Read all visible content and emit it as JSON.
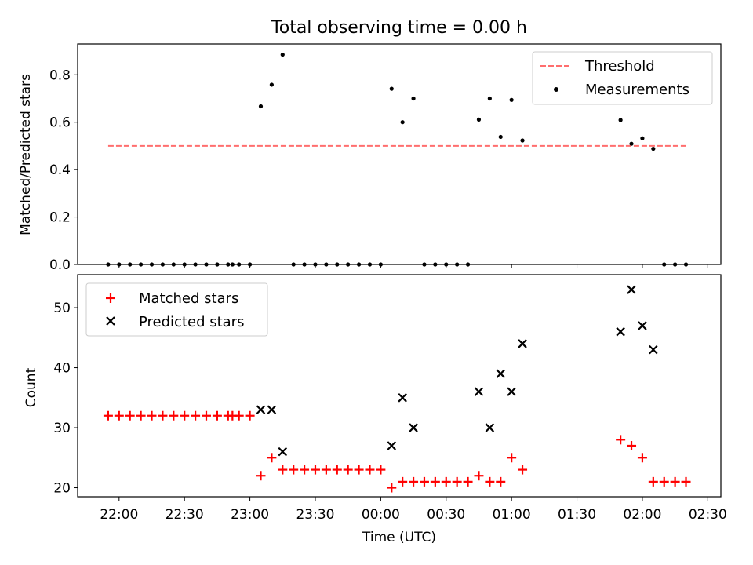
{
  "figure": {
    "title": "Total observing time = 0.00 h"
  },
  "chart_data": [
    {
      "type": "scatter",
      "panel": "top",
      "ylabel": "Matched/Predicted stars",
      "xlabel": "",
      "x_axis": "time",
      "xlim": [
        "21:41",
        "02:36"
      ],
      "ylim": [
        0,
        0.93
      ],
      "yticks": [
        0.0,
        0.2,
        0.4,
        0.6,
        0.8
      ],
      "ytick_labels": [
        "0.0",
        "0.2",
        "0.4",
        "0.6",
        "0.8"
      ],
      "xtick_labels_visible": false,
      "grid": false,
      "legend_position": "top-right",
      "threshold": {
        "name": "Threshold",
        "y": 0.5,
        "x_range": [
          "21:55",
          "02:20"
        ],
        "color": "#ff6e6e",
        "style": "dashed"
      },
      "series": [
        {
          "name": "Measurements",
          "color": "#000000",
          "marker": "dot",
          "points": [
            [
              "21:55",
              0
            ],
            [
              "22:00",
              0
            ],
            [
              "22:05",
              0
            ],
            [
              "22:10",
              0
            ],
            [
              "22:15",
              0
            ],
            [
              "22:20",
              0
            ],
            [
              "22:25",
              0
            ],
            [
              "22:30",
              0
            ],
            [
              "22:35",
              0
            ],
            [
              "22:40",
              0
            ],
            [
              "22:45",
              0
            ],
            [
              "22:50",
              0
            ],
            [
              "22:52",
              0
            ],
            [
              "22:55",
              0
            ],
            [
              "23:00",
              0
            ],
            [
              "23:05",
              0.667
            ],
            [
              "23:10",
              0.758
            ],
            [
              "23:15",
              0.885
            ],
            [
              "23:20",
              0
            ],
            [
              "23:25",
              0
            ],
            [
              "23:30",
              0
            ],
            [
              "23:35",
              0
            ],
            [
              "23:40",
              0
            ],
            [
              "23:45",
              0
            ],
            [
              "23:50",
              0
            ],
            [
              "23:55",
              0
            ],
            [
              "00:00",
              0
            ],
            [
              "00:05",
              0.741
            ],
            [
              "00:10",
              0.6
            ],
            [
              "00:15",
              0.7
            ],
            [
              "00:20",
              0
            ],
            [
              "00:25",
              0
            ],
            [
              "00:30",
              0
            ],
            [
              "00:35",
              0
            ],
            [
              "00:40",
              0
            ],
            [
              "00:45",
              0.611
            ],
            [
              "00:50",
              0.7
            ],
            [
              "00:55",
              0.538
            ],
            [
              "01:00",
              0.694
            ],
            [
              "01:05",
              0.523
            ],
            [
              "01:50",
              0.609
            ],
            [
              "01:55",
              0.509
            ],
            [
              "02:00",
              0.532
            ],
            [
              "02:05",
              0.488
            ],
            [
              "02:10",
              0
            ],
            [
              "02:15",
              0
            ],
            [
              "02:20",
              0
            ]
          ]
        }
      ]
    },
    {
      "type": "scatter",
      "panel": "bottom",
      "ylabel": "Count",
      "xlabel": "Time (UTC)",
      "x_axis": "time",
      "xlim": [
        "21:41",
        "02:36"
      ],
      "ylim": [
        18.5,
        55.5
      ],
      "yticks": [
        20,
        30,
        40,
        50
      ],
      "ytick_labels": [
        "20",
        "30",
        "40",
        "50"
      ],
      "xticks": [
        "22:00",
        "22:30",
        "23:00",
        "23:30",
        "00:00",
        "00:30",
        "01:00",
        "01:30",
        "02:00",
        "02:30"
      ],
      "xtick_labels": [
        "22:00",
        "22:30",
        "23:00",
        "23:30",
        "00:00",
        "00:30",
        "01:00",
        "01:30",
        "02:00",
        "02:30"
      ],
      "grid": false,
      "legend_position": "top-left",
      "series": [
        {
          "name": "Matched stars",
          "color": "#ff0000",
          "marker": "plus",
          "points": [
            [
              "21:55",
              32
            ],
            [
              "22:00",
              32
            ],
            [
              "22:05",
              32
            ],
            [
              "22:10",
              32
            ],
            [
              "22:15",
              32
            ],
            [
              "22:20",
              32
            ],
            [
              "22:25",
              32
            ],
            [
              "22:30",
              32
            ],
            [
              "22:35",
              32
            ],
            [
              "22:40",
              32
            ],
            [
              "22:45",
              32
            ],
            [
              "22:50",
              32
            ],
            [
              "22:52",
              32
            ],
            [
              "22:55",
              32
            ],
            [
              "23:00",
              32
            ],
            [
              "23:05",
              22
            ],
            [
              "23:10",
              25
            ],
            [
              "23:15",
              23
            ],
            [
              "23:20",
              23
            ],
            [
              "23:25",
              23
            ],
            [
              "23:30",
              23
            ],
            [
              "23:35",
              23
            ],
            [
              "23:40",
              23
            ],
            [
              "23:45",
              23
            ],
            [
              "23:50",
              23
            ],
            [
              "23:55",
              23
            ],
            [
              "00:00",
              23
            ],
            [
              "00:05",
              20
            ],
            [
              "00:10",
              21
            ],
            [
              "00:15",
              21
            ],
            [
              "00:20",
              21
            ],
            [
              "00:25",
              21
            ],
            [
              "00:30",
              21
            ],
            [
              "00:35",
              21
            ],
            [
              "00:40",
              21
            ],
            [
              "00:45",
              22
            ],
            [
              "00:50",
              21
            ],
            [
              "00:55",
              21
            ],
            [
              "01:00",
              25
            ],
            [
              "01:05",
              23
            ],
            [
              "01:50",
              28
            ],
            [
              "01:55",
              27
            ],
            [
              "02:00",
              25
            ],
            [
              "02:05",
              21
            ],
            [
              "02:10",
              21
            ],
            [
              "02:15",
              21
            ],
            [
              "02:20",
              21
            ]
          ]
        },
        {
          "name": "Predicted stars",
          "color": "#000000",
          "marker": "x",
          "points": [
            [
              "23:05",
              33
            ],
            [
              "23:10",
              33
            ],
            [
              "23:15",
              26
            ],
            [
              "00:05",
              27
            ],
            [
              "00:10",
              35
            ],
            [
              "00:15",
              30
            ],
            [
              "00:45",
              36
            ],
            [
              "00:50",
              30
            ],
            [
              "00:55",
              39
            ],
            [
              "01:00",
              36
            ],
            [
              "01:05",
              44
            ],
            [
              "01:50",
              46
            ],
            [
              "01:55",
              53
            ],
            [
              "02:00",
              47
            ],
            [
              "02:05",
              43
            ]
          ]
        }
      ]
    }
  ]
}
